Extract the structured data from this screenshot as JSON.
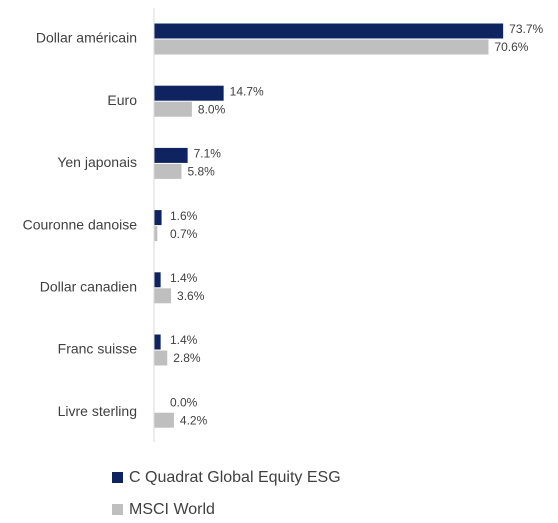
{
  "chart_data": {
    "type": "hbar",
    "categories": [
      "Dollar américain",
      "Euro",
      "Yen japonais",
      "Couronne danoise",
      "Dollar canadien",
      "Franc suisse",
      "Livre sterling"
    ],
    "series": [
      {
        "name": "C Quadrat Global Equity ESG",
        "color": "#0f2361",
        "values": [
          73.7,
          14.7,
          7.1,
          1.6,
          1.4,
          1.4,
          0.0
        ],
        "value_labels": [
          "73.7%",
          "14.7%",
          "7.1%",
          "1.6%",
          "1.4%",
          "1.4%",
          "0.0%"
        ]
      },
      {
        "name": "MSCI World",
        "color": "#bfbfbf",
        "values": [
          70.6,
          8.0,
          5.8,
          0.7,
          3.6,
          2.8,
          4.2
        ],
        "value_labels": [
          "70.6%",
          "8.0%",
          "5.8%",
          "0.7%",
          "3.6%",
          "2.8%",
          "4.2%"
        ]
      }
    ],
    "xlim": [
      0,
      80
    ]
  }
}
